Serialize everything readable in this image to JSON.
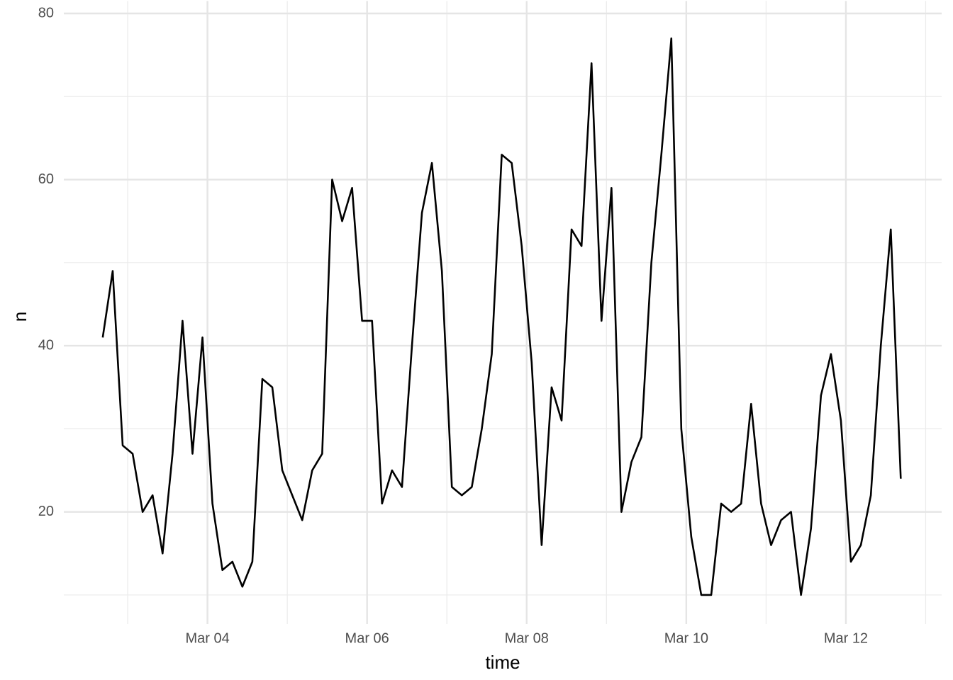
{
  "chart_data": {
    "type": "line",
    "x_label": "time",
    "y_label": "n",
    "x": [
      2.6875,
      2.8125,
      2.9375,
      3.0625,
      3.1875,
      3.3125,
      3.4375,
      3.5625,
      3.6875,
      3.8125,
      3.9375,
      4.0625,
      4.1875,
      4.3125,
      4.4375,
      4.5625,
      4.6875,
      4.8125,
      4.9375,
      5.0625,
      5.1875,
      5.3125,
      5.4375,
      5.5625,
      5.6875,
      5.8125,
      5.9375,
      6.0625,
      6.1875,
      6.3125,
      6.4375,
      6.5625,
      6.6875,
      6.8125,
      6.9375,
      7.0625,
      7.1875,
      7.3125,
      7.4375,
      7.5625,
      7.6875,
      7.8125,
      7.9375,
      8.0625,
      8.1875,
      8.3125,
      8.4375,
      8.5625,
      8.6875,
      8.8125,
      8.9375,
      9.0625,
      9.1875,
      9.3125,
      9.4375,
      9.5625,
      9.6875,
      9.8125,
      9.9375,
      10.0625,
      10.1875,
      10.3125,
      10.4375,
      10.5625,
      10.6875,
      10.8125,
      10.9375,
      11.0625,
      11.1875,
      11.3125,
      11.4375,
      11.5625,
      11.6875,
      11.8125,
      11.9375,
      12.0625,
      12.1875,
      12.3125,
      12.4375,
      12.5625,
      12.6875
    ],
    "series": [
      {
        "name": "n",
        "color": "#000000",
        "values": [
          41,
          49,
          28,
          27,
          20,
          22,
          15,
          27,
          43,
          27,
          41,
          21,
          13,
          14,
          11,
          14,
          36,
          35,
          25,
          22,
          19,
          25,
          27,
          60,
          55,
          59,
          43,
          43,
          21,
          25,
          23,
          40,
          56,
          62,
          49,
          23,
          22,
          23,
          30,
          39,
          63,
          62,
          52,
          38,
          16,
          35,
          31,
          54,
          52,
          74,
          43,
          59,
          20,
          26,
          29,
          50,
          63,
          77,
          30,
          17,
          10,
          10,
          21,
          20,
          21,
          33,
          21,
          16,
          19,
          20,
          10,
          18,
          34,
          39,
          31,
          14,
          16,
          22,
          40,
          54,
          24
        ]
      }
    ],
    "xlim": [
      2.2,
      13.2
    ],
    "xticks": [
      {
        "value": 4,
        "label": "Mar 04"
      },
      {
        "value": 6,
        "label": "Mar 06"
      },
      {
        "value": 8,
        "label": "Mar 08"
      },
      {
        "value": 10,
        "label": "Mar 10"
      },
      {
        "value": 12,
        "label": "Mar 12"
      }
    ],
    "x_minor_ticks": [
      3,
      5,
      7,
      9,
      11,
      13
    ],
    "ylim": [
      6.5,
      81.5
    ],
    "yticks": [
      20,
      40,
      60,
      80
    ],
    "y_minor_ticks": [
      10,
      30,
      50,
      70
    ],
    "grid": true
  }
}
